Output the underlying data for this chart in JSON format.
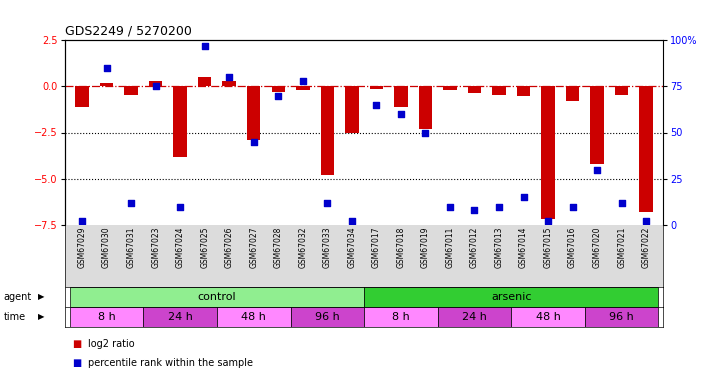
{
  "title": "GDS2249 / 5270200",
  "samples": [
    "GSM67029",
    "GSM67030",
    "GSM67031",
    "GSM67023",
    "GSM67024",
    "GSM67025",
    "GSM67026",
    "GSM67027",
    "GSM67028",
    "GSM67032",
    "GSM67033",
    "GSM67034",
    "GSM67017",
    "GSM67018",
    "GSM67019",
    "GSM67011",
    "GSM67012",
    "GSM67013",
    "GSM67014",
    "GSM67015",
    "GSM67016",
    "GSM67020",
    "GSM67021",
    "GSM67022"
  ],
  "log2_ratio": [
    -1.1,
    0.2,
    -0.45,
    0.28,
    -3.8,
    0.5,
    0.3,
    -2.9,
    -0.3,
    -0.2,
    -4.8,
    -2.5,
    -0.15,
    -1.1,
    -2.3,
    -0.2,
    -0.35,
    -0.45,
    -0.55,
    -7.2,
    -0.8,
    -4.2,
    -0.45,
    -6.8
  ],
  "percentile_rank": [
    2,
    85,
    12,
    75,
    10,
    97,
    80,
    45,
    70,
    78,
    12,
    2,
    65,
    60,
    50,
    10,
    8,
    10,
    15,
    2,
    10,
    30,
    12,
    2
  ],
  "agent_groups": [
    {
      "label": "control",
      "start": 0,
      "end": 11,
      "color": "#90EE90"
    },
    {
      "label": "arsenic",
      "start": 12,
      "end": 23,
      "color": "#32CD32"
    }
  ],
  "time_groups": [
    {
      "label": "8 h",
      "start": 0,
      "end": 2,
      "color": "#FF88FF"
    },
    {
      "label": "24 h",
      "start": 3,
      "end": 5,
      "color": "#CC44CC"
    },
    {
      "label": "48 h",
      "start": 6,
      "end": 8,
      "color": "#FF88FF"
    },
    {
      "label": "96 h",
      "start": 9,
      "end": 11,
      "color": "#CC44CC"
    },
    {
      "label": "8 h",
      "start": 12,
      "end": 14,
      "color": "#FF88FF"
    },
    {
      "label": "24 h",
      "start": 15,
      "end": 17,
      "color": "#CC44CC"
    },
    {
      "label": "48 h",
      "start": 18,
      "end": 20,
      "color": "#FF88FF"
    },
    {
      "label": "96 h",
      "start": 21,
      "end": 23,
      "color": "#CC44CC"
    }
  ],
  "ylim_left": [
    -7.5,
    2.5
  ],
  "ylim_right": [
    0,
    100
  ],
  "yticks_left": [
    -7.5,
    -5.0,
    -2.5,
    0.0,
    2.5
  ],
  "yticks_right": [
    0,
    25,
    50,
    75,
    100
  ],
  "bar_color": "#CC0000",
  "scatter_color": "#0000CC",
  "dotted_lines": [
    -2.5,
    -5.0
  ],
  "legend_items": [
    {
      "label": "log2 ratio",
      "color": "#CC0000"
    },
    {
      "label": "percentile rank within the sample",
      "color": "#0000CC"
    }
  ],
  "light_pink": "#FF88FF",
  "dark_pink": "#CC44CC",
  "light_green": "#90EE90",
  "dark_green": "#32CD32",
  "sample_bg": "#DCDCDC"
}
